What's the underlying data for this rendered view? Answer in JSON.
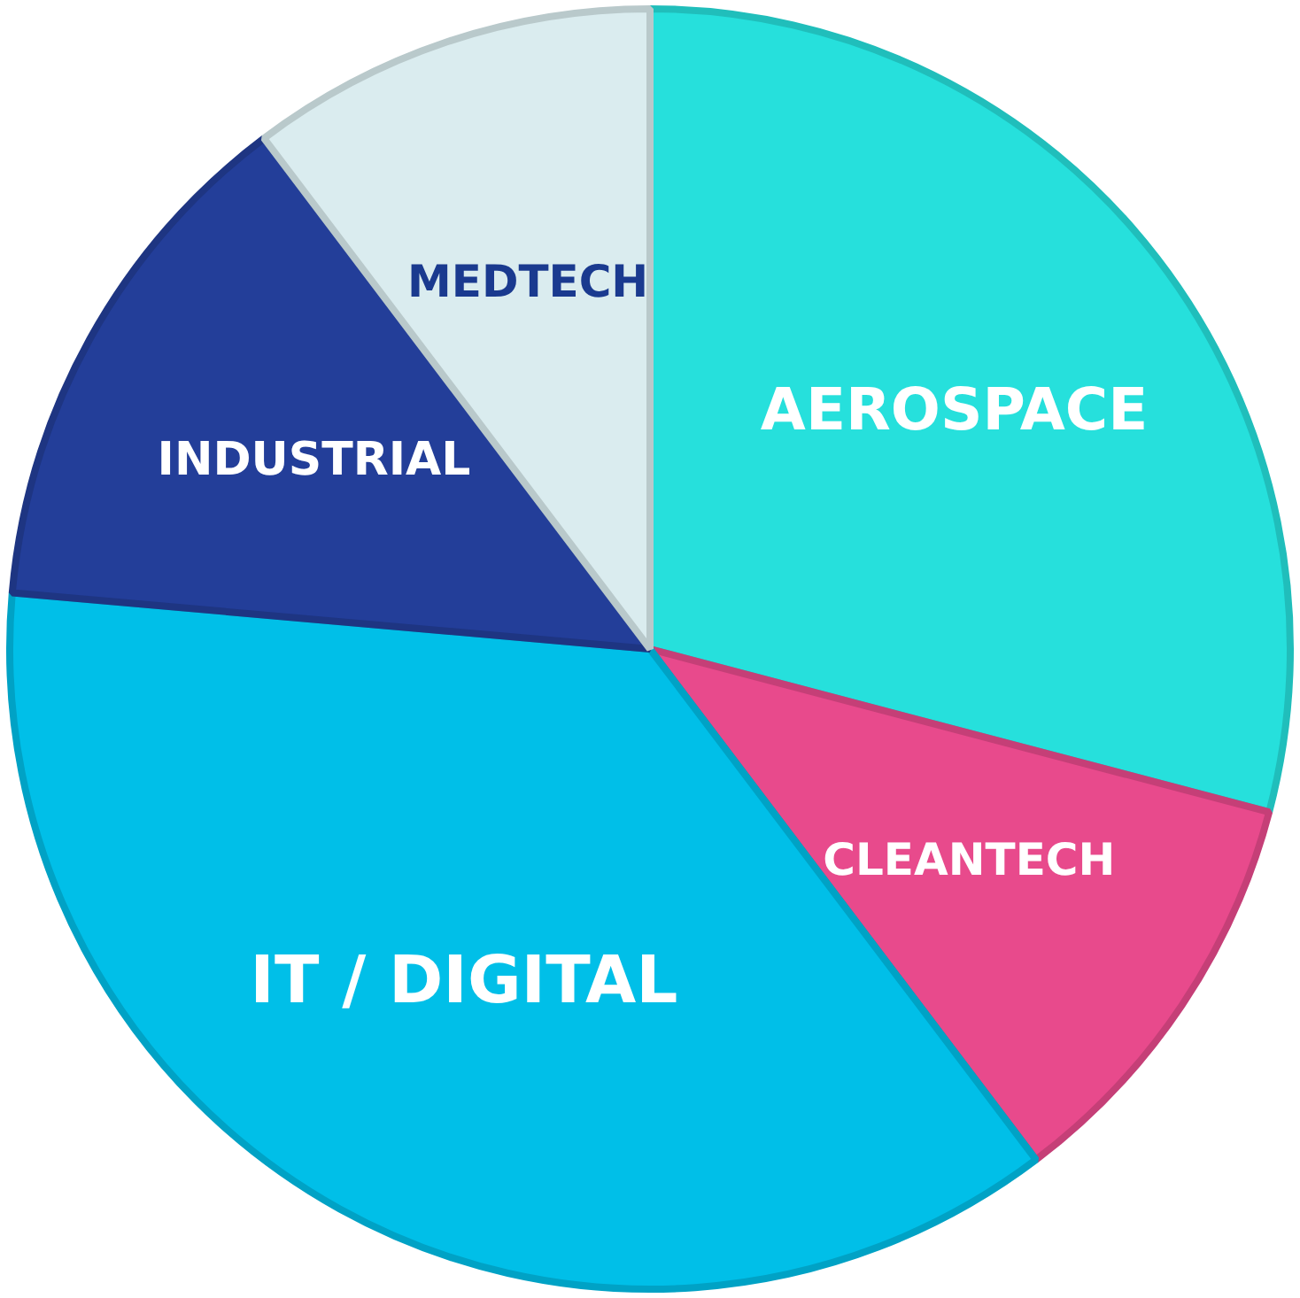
{
  "chart_data": {
    "type": "pie",
    "categories": [
      "AEROSPACE",
      "CLEANTECH",
      "IT / DIGITAL",
      "INDUSTRIAL",
      "MEDTECH"
    ],
    "values": [
      29.1,
      10.6,
      36.7,
      13.3,
      10.3
    ],
    "colors": [
      "#26e0dc",
      "#e84a8c",
      "#00bfe8",
      "#233e99",
      "#daecef"
    ],
    "legend": false
  }
}
